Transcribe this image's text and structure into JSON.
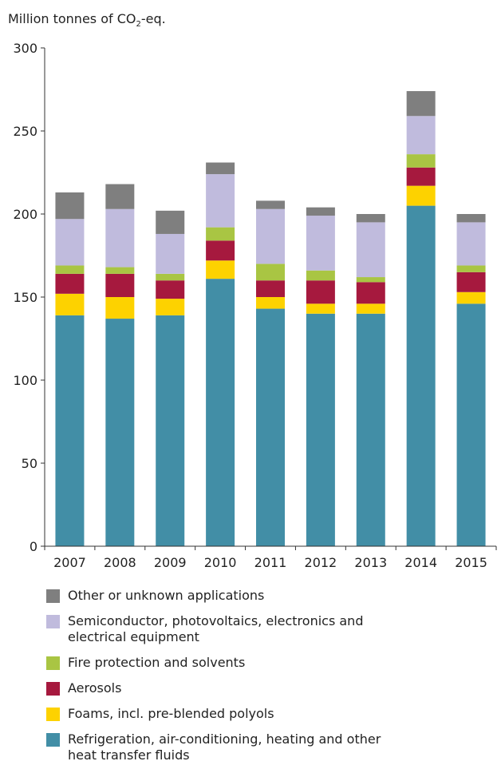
{
  "chart_data": {
    "type": "bar",
    "stacked": true,
    "ylabel_parts": [
      "Million tonnes of CO",
      "2",
      "-eq."
    ],
    "categories": [
      "2007",
      "2008",
      "2009",
      "2010",
      "2011",
      "2012",
      "2013",
      "2014",
      "2015"
    ],
    "ylim": [
      0,
      300
    ],
    "yticks": [
      0,
      50,
      100,
      150,
      200,
      250,
      300
    ],
    "grid": false,
    "legend_position": "bottom",
    "series": [
      {
        "name": "Refrigeration, air-conditioning, heating and other heat transfer fluids",
        "color": "#428ea6",
        "values": [
          139,
          137,
          139,
          161,
          143,
          140,
          140,
          205,
          146
        ]
      },
      {
        "name": "Foams, incl. pre-blended polyols",
        "color": "#fdd200",
        "values": [
          13,
          13,
          10,
          11,
          7,
          6,
          6,
          12,
          7
        ]
      },
      {
        "name": "Aerosols",
        "color": "#a6193e",
        "values": [
          12,
          14,
          11,
          12,
          10,
          14,
          13,
          11,
          12
        ]
      },
      {
        "name": "Fire protection and solvents",
        "color": "#a9c543",
        "values": [
          5,
          4,
          4,
          8,
          10,
          6,
          3,
          8,
          4
        ]
      },
      {
        "name": "Semiconductor, photovoltaics, electronics and electrical equipment",
        "color": "#c0bbdd",
        "values": [
          28,
          35,
          24,
          32,
          33,
          33,
          33,
          23,
          26
        ]
      },
      {
        "name": "Other or unknown applications",
        "color": "#7f7f7f",
        "values": [
          16,
          15,
          14,
          7,
          5,
          5,
          5,
          15,
          5
        ]
      }
    ]
  }
}
